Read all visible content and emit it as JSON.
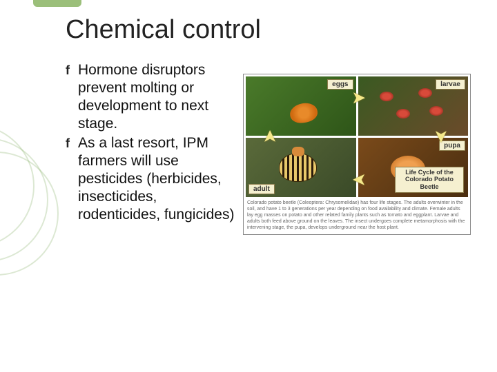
{
  "title": "Chemical control",
  "bullets": [
    "Hormone disruptors prevent molting or development to next stage.",
    "As a last resort, IPM farmers will use pesticides (herbicides, insecticides, rodenticides, fungicides)"
  ],
  "bullet_glyph": "f",
  "figure": {
    "labels": {
      "eggs": "eggs",
      "larvae": "larvae",
      "adult": "adult",
      "pupa": "pupa"
    },
    "title_line1": "Life Cycle of the",
    "title_line2": "Colorado Potato Beetle",
    "caption": "Colorado potato beetle (Coleoptera: Chrysomelidae) has four life stages. The adults overwinter in the soil, and have 1 to 3 generations per year depending on food availability and climate. Female adults lay egg masses on potato and other related family plants such as tomato and eggplant. Larvae and adults both feed above ground on the leaves. The insect undergoes complete metamorphosis with the intervening stage, the pupa, develops underground near the host plant."
  },
  "colors": {
    "accent_green": "#9bbf7a",
    "deco_ring": "rgba(140,180,110,0.3)",
    "text": "#111111",
    "label_bg": "#f5f0d0",
    "label_border": "#8a7a4a"
  }
}
